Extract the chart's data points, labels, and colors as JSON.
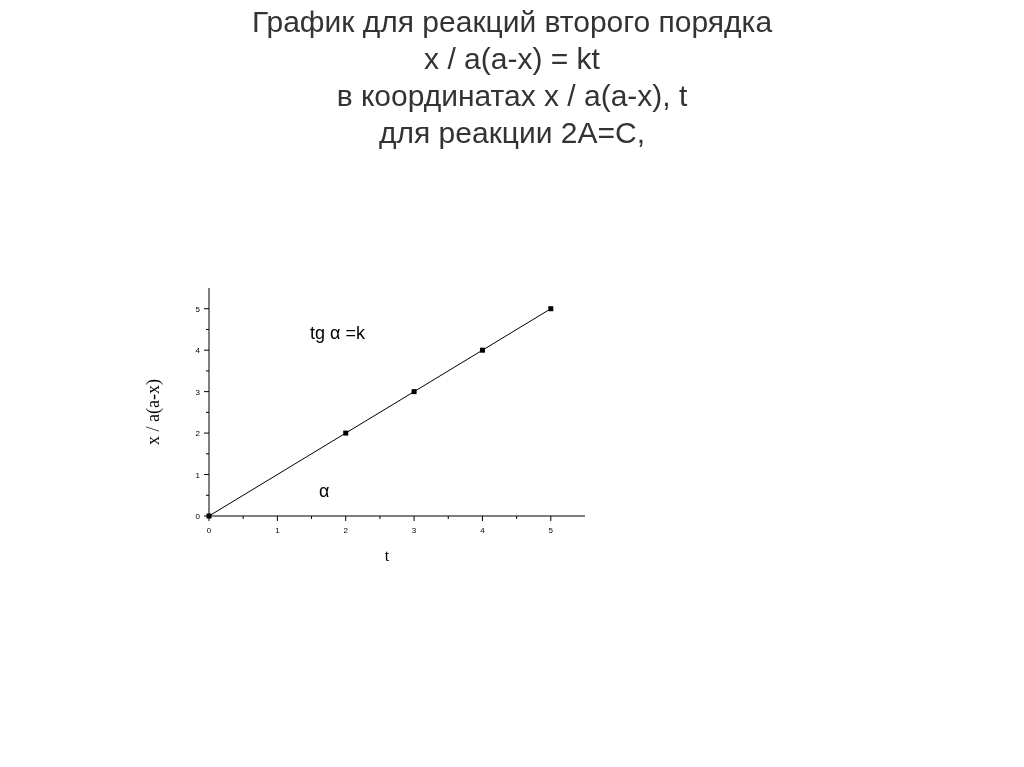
{
  "chart_data": {
    "type": "scatter",
    "title": "График для реакций второго порядка\nx / a(a-x) = kt",
    "subtitle": "в координатах x / a(a-x), t\nдля реакции 2A=C,",
    "xlabel": "t",
    "ylabel": "x / a(a-x)",
    "xlim": [
      0,
      5.5
    ],
    "ylim": [
      0,
      5.5
    ],
    "xticks": [
      0,
      1,
      2,
      3,
      4,
      5
    ],
    "yticks": [
      0,
      1,
      2,
      3,
      4,
      5
    ],
    "grid": false,
    "marker": "square",
    "series": [
      {
        "type": "line",
        "color": "#000000",
        "x": [
          0,
          5
        ],
        "values": [
          0,
          5
        ],
        "marker": "none",
        "line_style": "solid"
      },
      {
        "color": "#000000",
        "x": [
          0,
          2,
          3,
          4,
          5
        ],
        "values": [
          0,
          2,
          3,
          4,
          5
        ]
      }
    ],
    "annotations": [
      "tg α =k",
      "α"
    ]
  }
}
